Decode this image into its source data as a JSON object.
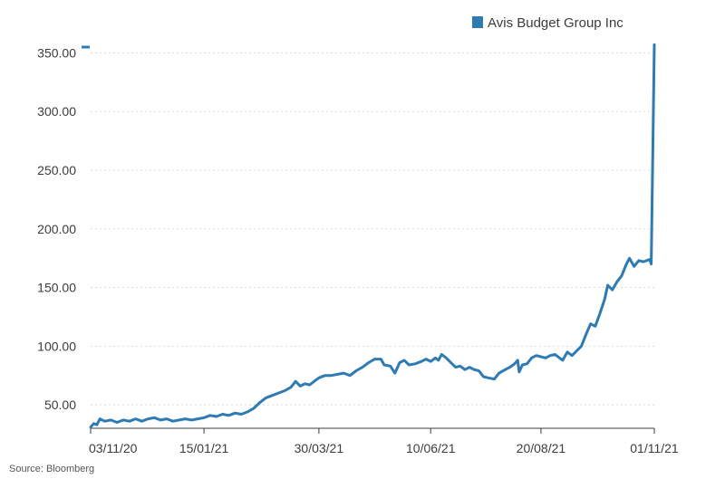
{
  "chart_data": {
    "type": "line",
    "title": "",
    "xlabel": "",
    "ylabel": "",
    "legend": {
      "placement": "top-right"
    },
    "grid": true,
    "ylim": [
      30,
      355
    ],
    "xlim": [
      "2020-11-03",
      "2021-11-01"
    ],
    "y_ticks": [
      50,
      100,
      150,
      200,
      250,
      300,
      350
    ],
    "y_tick_labels": [
      "50.00",
      "100.00",
      "150.00",
      "200.00",
      "250.00",
      "300.00",
      "350.00"
    ],
    "x_ticks": [
      "2020-11-03",
      "2021-01-15",
      "2021-03-30",
      "2021-06-10",
      "2021-08-20",
      "2021-11-01"
    ],
    "x_tick_labels": [
      "03/11/20",
      "15/01/21",
      "30/03/21",
      "10/06/21",
      "20/08/21",
      "01/11/21"
    ],
    "source": "Source: Bloomberg",
    "series": [
      {
        "name": "Avis Budget Group Inc",
        "color": "#2e7bb4",
        "points": [
          [
            "2020-11-03",
            31
          ],
          [
            "2020-11-05",
            34
          ],
          [
            "2020-11-07",
            33
          ],
          [
            "2020-11-09",
            38
          ],
          [
            "2020-11-12",
            36
          ],
          [
            "2020-11-16",
            37
          ],
          [
            "2020-11-20",
            35
          ],
          [
            "2020-11-24",
            37
          ],
          [
            "2020-11-28",
            36
          ],
          [
            "2020-12-02",
            38
          ],
          [
            "2020-12-06",
            36
          ],
          [
            "2020-12-10",
            38
          ],
          [
            "2020-12-14",
            39
          ],
          [
            "2020-12-18",
            37
          ],
          [
            "2020-12-22",
            38
          ],
          [
            "2020-12-26",
            36
          ],
          [
            "2020-12-30",
            37
          ],
          [
            "2021-01-03",
            38
          ],
          [
            "2021-01-07",
            37
          ],
          [
            "2021-01-11",
            38
          ],
          [
            "2021-01-15",
            39
          ],
          [
            "2021-01-19",
            41
          ],
          [
            "2021-01-23",
            40
          ],
          [
            "2021-01-27",
            42
          ],
          [
            "2021-01-31",
            41
          ],
          [
            "2021-02-04",
            43
          ],
          [
            "2021-02-08",
            42
          ],
          [
            "2021-02-12",
            44
          ],
          [
            "2021-02-16",
            47
          ],
          [
            "2021-02-20",
            52
          ],
          [
            "2021-02-24",
            56
          ],
          [
            "2021-02-28",
            58
          ],
          [
            "2021-03-04",
            60
          ],
          [
            "2021-03-08",
            62
          ],
          [
            "2021-03-12",
            65
          ],
          [
            "2021-03-15",
            70
          ],
          [
            "2021-03-18",
            66
          ],
          [
            "2021-03-21",
            68
          ],
          [
            "2021-03-24",
            67
          ],
          [
            "2021-03-27",
            70
          ],
          [
            "2021-03-30",
            73
          ],
          [
            "2021-04-03",
            75
          ],
          [
            "2021-04-07",
            75
          ],
          [
            "2021-04-11",
            76
          ],
          [
            "2021-04-15",
            77
          ],
          [
            "2021-04-19",
            75
          ],
          [
            "2021-04-23",
            79
          ],
          [
            "2021-04-27",
            82
          ],
          [
            "2021-05-01",
            86
          ],
          [
            "2021-05-05",
            89
          ],
          [
            "2021-05-09",
            89
          ],
          [
            "2021-05-11",
            84
          ],
          [
            "2021-05-15",
            83
          ],
          [
            "2021-05-18",
            77
          ],
          [
            "2021-05-21",
            86
          ],
          [
            "2021-05-24",
            88
          ],
          [
            "2021-05-27",
            84
          ],
          [
            "2021-05-31",
            85
          ],
          [
            "2021-06-04",
            87
          ],
          [
            "2021-06-07",
            89
          ],
          [
            "2021-06-10",
            87
          ],
          [
            "2021-06-13",
            90
          ],
          [
            "2021-06-15",
            88
          ],
          [
            "2021-06-17",
            93
          ],
          [
            "2021-06-20",
            90
          ],
          [
            "2021-06-23",
            86
          ],
          [
            "2021-06-26",
            82
          ],
          [
            "2021-06-29",
            83
          ],
          [
            "2021-07-02",
            80
          ],
          [
            "2021-07-05",
            82
          ],
          [
            "2021-07-08",
            80
          ],
          [
            "2021-07-11",
            79
          ],
          [
            "2021-07-14",
            74
          ],
          [
            "2021-07-17",
            73
          ],
          [
            "2021-07-21",
            72
          ],
          [
            "2021-07-24",
            77
          ],
          [
            "2021-07-28",
            80
          ],
          [
            "2021-07-31",
            82
          ],
          [
            "2021-08-03",
            85
          ],
          [
            "2021-08-05",
            88
          ],
          [
            "2021-08-06",
            78
          ],
          [
            "2021-08-08",
            84
          ],
          [
            "2021-08-11",
            85
          ],
          [
            "2021-08-14",
            90
          ],
          [
            "2021-08-17",
            92
          ],
          [
            "2021-08-20",
            91
          ],
          [
            "2021-08-23",
            90
          ],
          [
            "2021-08-26",
            92
          ],
          [
            "2021-08-29",
            93
          ],
          [
            "2021-09-01",
            90
          ],
          [
            "2021-09-03",
            88
          ],
          [
            "2021-09-06",
            95
          ],
          [
            "2021-09-09",
            92
          ],
          [
            "2021-09-12",
            96
          ],
          [
            "2021-09-15",
            100
          ],
          [
            "2021-09-18",
            110
          ],
          [
            "2021-09-21",
            119
          ],
          [
            "2021-09-24",
            117
          ],
          [
            "2021-09-27",
            128
          ],
          [
            "2021-09-30",
            140
          ],
          [
            "2021-10-02",
            152
          ],
          [
            "2021-10-05",
            148
          ],
          [
            "2021-10-08",
            155
          ],
          [
            "2021-10-11",
            160
          ],
          [
            "2021-10-14",
            170
          ],
          [
            "2021-10-16",
            175
          ],
          [
            "2021-10-19",
            168
          ],
          [
            "2021-10-22",
            173
          ],
          [
            "2021-10-25",
            172
          ],
          [
            "2021-10-29",
            174
          ],
          [
            "2021-10-30",
            170
          ],
          [
            "2021-11-01",
            357
          ]
        ]
      }
    ]
  }
}
